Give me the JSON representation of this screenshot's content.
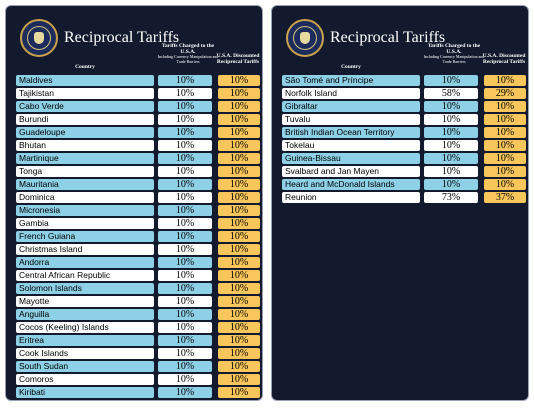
{
  "header": {
    "title": "Reciprocal Tariffs",
    "col_country": "Country",
    "col_charged": "Tariffs Charged to the U.S.A.",
    "col_charged_sub": "Including Currency Manipulation and Trade Barriers",
    "col_discounted": "U.S.A. Discounted Reciprocal Tariffs"
  },
  "colors": {
    "panel_bg": "#141a2e",
    "row_blue": "#8ed0e6",
    "row_white": "#ffffff",
    "discount_gold": "#f8c65a"
  },
  "left_rows": [
    {
      "country": "Maldives",
      "charged": "10%",
      "discounted": "10%"
    },
    {
      "country": "Tajikistan",
      "charged": "10%",
      "discounted": "10%"
    },
    {
      "country": "Cabo Verde",
      "charged": "10%",
      "discounted": "10%"
    },
    {
      "country": "Burundi",
      "charged": "10%",
      "discounted": "10%"
    },
    {
      "country": "Guadeloupe",
      "charged": "10%",
      "discounted": "10%"
    },
    {
      "country": "Bhutan",
      "charged": "10%",
      "discounted": "10%"
    },
    {
      "country": "Martinique",
      "charged": "10%",
      "discounted": "10%"
    },
    {
      "country": "Tonga",
      "charged": "10%",
      "discounted": "10%"
    },
    {
      "country": "Mauritania",
      "charged": "10%",
      "discounted": "10%"
    },
    {
      "country": "Dominica",
      "charged": "10%",
      "discounted": "10%"
    },
    {
      "country": "Micronesia",
      "charged": "10%",
      "discounted": "10%"
    },
    {
      "country": "Gambia",
      "charged": "10%",
      "discounted": "10%"
    },
    {
      "country": "French Guiana",
      "charged": "10%",
      "discounted": "10%"
    },
    {
      "country": "Christmas Island",
      "charged": "10%",
      "discounted": "10%"
    },
    {
      "country": "Andorra",
      "charged": "10%",
      "discounted": "10%"
    },
    {
      "country": "Central African Republic",
      "charged": "10%",
      "discounted": "10%"
    },
    {
      "country": "Solomon Islands",
      "charged": "10%",
      "discounted": "10%"
    },
    {
      "country": "Mayotte",
      "charged": "10%",
      "discounted": "10%"
    },
    {
      "country": "Anguilla",
      "charged": "10%",
      "discounted": "10%"
    },
    {
      "country": "Cocos (Keeling) Islands",
      "charged": "10%",
      "discounted": "10%"
    },
    {
      "country": "Eritrea",
      "charged": "10%",
      "discounted": "10%"
    },
    {
      "country": "Cook Islands",
      "charged": "10%",
      "discounted": "10%"
    },
    {
      "country": "South Sudan",
      "charged": "10%",
      "discounted": "10%"
    },
    {
      "country": "Comoros",
      "charged": "10%",
      "discounted": "10%"
    },
    {
      "country": "Kiribati",
      "charged": "10%",
      "discounted": "10%"
    }
  ],
  "right_rows": [
    {
      "country": "São Tomé and Príncipe",
      "charged": "10%",
      "discounted": "10%"
    },
    {
      "country": "Norfolk Island",
      "charged": "58%",
      "discounted": "29%"
    },
    {
      "country": "Gibraltar",
      "charged": "10%",
      "discounted": "10%"
    },
    {
      "country": "Tuvalu",
      "charged": "10%",
      "discounted": "10%"
    },
    {
      "country": "British Indian Ocean Territory",
      "charged": "10%",
      "discounted": "10%"
    },
    {
      "country": "Tokelau",
      "charged": "10%",
      "discounted": "10%"
    },
    {
      "country": "Guinea-Bissau",
      "charged": "10%",
      "discounted": "10%"
    },
    {
      "country": "Svalbard and Jan Mayen",
      "charged": "10%",
      "discounted": "10%"
    },
    {
      "country": "Heard and McDonald Islands",
      "charged": "10%",
      "discounted": "10%"
    },
    {
      "country": "Reunion",
      "charged": "73%",
      "discounted": "37%"
    }
  ]
}
